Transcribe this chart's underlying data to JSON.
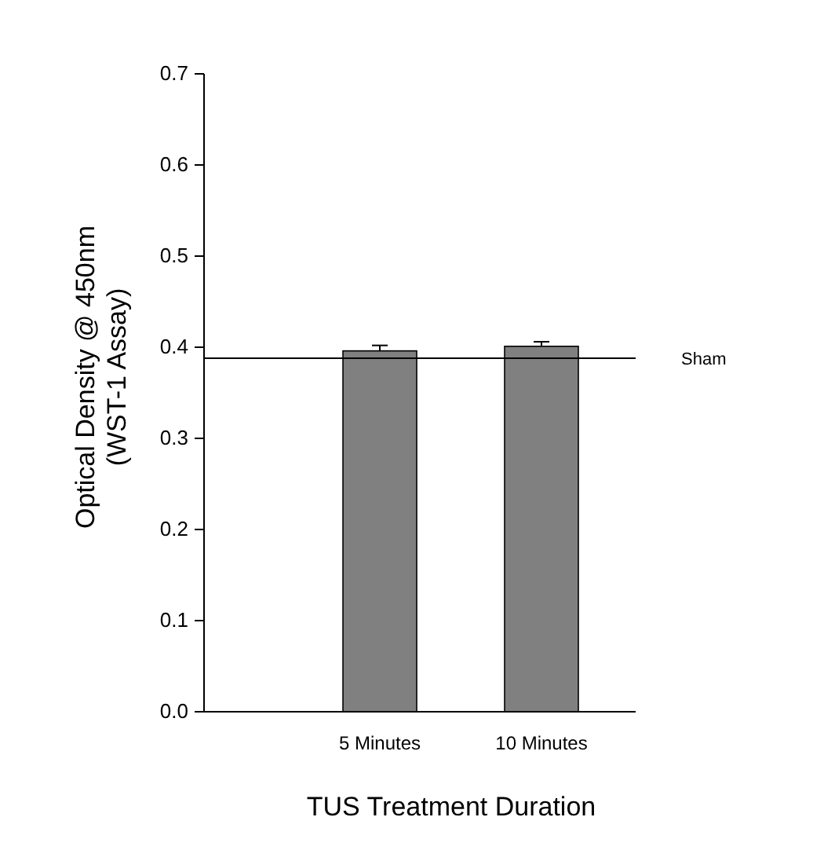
{
  "chart_data": {
    "type": "bar",
    "xlabel": "TUS Treatment Duration",
    "ylabel": "Optical Density @ 450nm\n(WST-1 Assay)",
    "categories": [
      "5 Minutes",
      "10 Minutes"
    ],
    "values": [
      0.396,
      0.401
    ],
    "errors": [
      0.006,
      0.005
    ],
    "color": "#808080",
    "ylim": [
      0,
      0.7
    ],
    "yticks": [
      {
        "value": 0,
        "label": "0.0"
      },
      0.1,
      0.2,
      0.3,
      0.4,
      0.5,
      0.6,
      0.7
    ],
    "ref_lines": [
      {
        "axis": "y",
        "value": 0.388,
        "label": "Sham",
        "color": "#000000"
      }
    ]
  }
}
